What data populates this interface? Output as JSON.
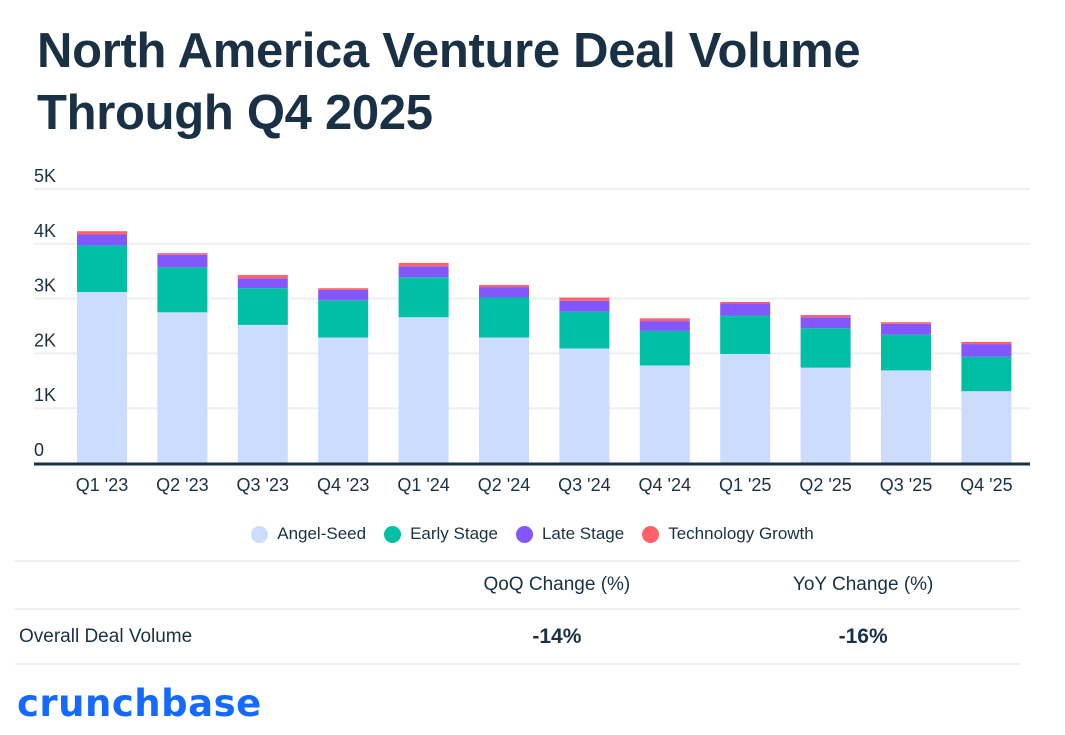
{
  "title": "North America Venture Deal Volume Through Q4 2025",
  "colors": {
    "title": "#1a3145",
    "angel_seed": "#cbdcfd",
    "early_stage": "#00bfa5",
    "late_stage": "#8257fe",
    "technology_growth": "#ff6268",
    "brand": "#146aff",
    "grid": "#eeeff1",
    "axis": "#1a3145"
  },
  "chart_data": {
    "type": "bar",
    "stacked": true,
    "title": "North America Venture Deal Volume Through Q4 2025",
    "xlabel": "",
    "ylabel": "",
    "ylim": [
      0,
      5000
    ],
    "yticks": [
      0,
      1000,
      2000,
      3000,
      4000,
      5000
    ],
    "ytick_labels": [
      "0",
      "1K",
      "2K",
      "3K",
      "4K",
      "5K"
    ],
    "grid": true,
    "legend_position": "bottom",
    "categories": [
      "Q1 '23",
      "Q2 '23",
      "Q3 '23",
      "Q4 '23",
      "Q1 '24",
      "Q2 '24",
      "Q3 '24",
      "Q4 '24",
      "Q1 '25",
      "Q2 '25",
      "Q3 '25",
      "Q4 '25"
    ],
    "series": [
      {
        "name": "Angel-Seed",
        "color": "#cbdcfd",
        "values": [
          3120,
          2750,
          2520,
          2290,
          2660,
          2290,
          2090,
          1780,
          1990,
          1740,
          1690,
          1310
        ]
      },
      {
        "name": "Early Stage",
        "color": "#00bfa5",
        "values": [
          850,
          820,
          670,
          680,
          730,
          730,
          670,
          630,
          700,
          720,
          650,
          630
        ]
      },
      {
        "name": "Late Stage",
        "color": "#8257fe",
        "values": [
          200,
          230,
          180,
          190,
          200,
          190,
          200,
          180,
          220,
          200,
          200,
          230
        ]
      },
      {
        "name": "Technology Growth",
        "color": "#ff6268",
        "values": [
          60,
          30,
          60,
          30,
          60,
          40,
          60,
          50,
          30,
          40,
          30,
          40
        ]
      }
    ]
  },
  "table": {
    "headers": [
      "",
      "QoQ Change (%)",
      "YoY Change (%)"
    ],
    "rows": [
      {
        "label": "Overall Deal Volume",
        "qoq": "-14%",
        "yoy": "-16%"
      }
    ]
  },
  "logo": "crunchbase"
}
